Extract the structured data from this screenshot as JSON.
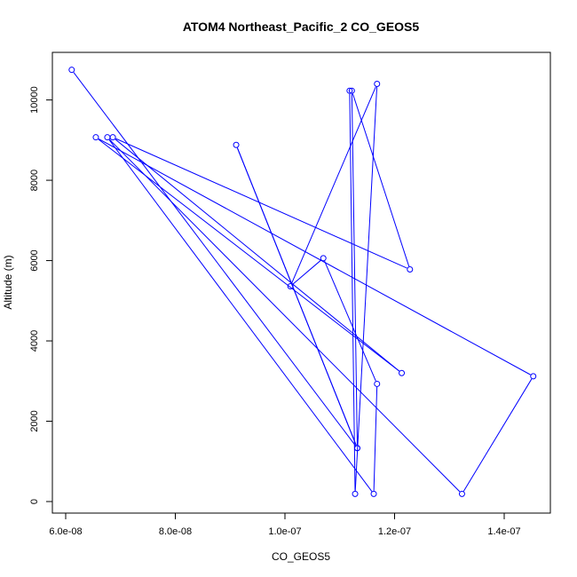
{
  "chart_data": {
    "type": "line",
    "title": "ATOM4 Northeast_Pacific_2 CO_GEOS5",
    "xlabel": "CO_GEOS5",
    "ylabel": "Altitude (m)",
    "xlim": [
      6e-08,
      1.45e-07
    ],
    "ylim": [
      0,
      11000
    ],
    "x_ticks": [
      6e-08,
      8e-08,
      1e-07,
      1.2e-07,
      1.4e-07
    ],
    "x_tick_labels": [
      "6.0e-08",
      "8.0e-08",
      "1.0e-07",
      "1.2e-07",
      "1.4e-07"
    ],
    "y_ticks": [
      0,
      2000,
      4000,
      6000,
      8000,
      10000
    ],
    "y_tick_labels": [
      "0",
      "2000",
      "4000",
      "6000",
      "8000",
      "10000"
    ],
    "grid": false,
    "line_color": "#0000ff",
    "marker": "open-circle",
    "series": [
      {
        "x": [
          6.11e-08,
          1.132e-07,
          9.11e-08,
          1.132e-07,
          1.122e-07,
          1.228e-07,
          6.86e-08,
          1.213e-07,
          6.55e-08,
          1.453e-07,
          1.323e-07,
          6.76e-08,
          1.162e-07,
          1.168e-07,
          1.07e-07,
          1.01e-07,
          1.168e-07,
          1.128e-07,
          1.118e-07
        ],
        "y": [
          10750,
          1330,
          8880,
          1330,
          10230,
          5780,
          9070,
          3200,
          9070,
          3120,
          190,
          9070,
          190,
          2930,
          6060,
          5360,
          10400,
          190,
          10230
        ]
      }
    ]
  }
}
